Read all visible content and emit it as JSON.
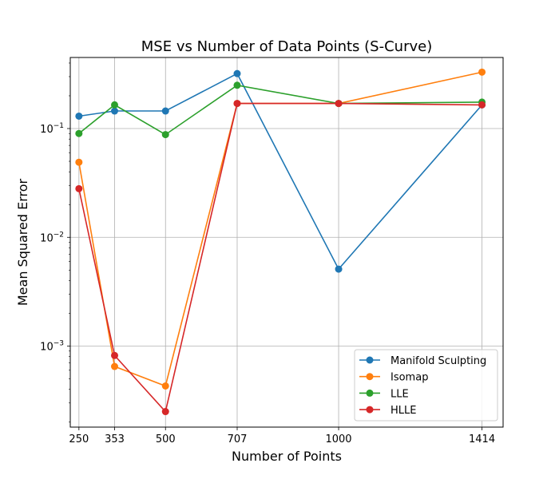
{
  "chart_data": {
    "type": "line",
    "title": "MSE vs Number of Data Points (S-Curve)",
    "xlabel": "Number of Points",
    "ylabel": "Mean Squared Error",
    "yscale": "log",
    "xlim": [
      225,
      1475
    ],
    "ylim": [
      0.00018,
      0.45
    ],
    "grid": true,
    "legend_position": "lower-right",
    "x": [
      250,
      353,
      500,
      707,
      1000,
      1414
    ],
    "xticks": [
      "250",
      "353",
      "500",
      "707",
      "1000",
      "1414"
    ],
    "yticks": [
      {
        "value": 0.001,
        "base": "10",
        "exp": "−3"
      },
      {
        "value": 0.01,
        "base": "10",
        "exp": "−2"
      },
      {
        "value": 0.1,
        "base": "10",
        "exp": "−1"
      }
    ],
    "series": [
      {
        "name": "Manifold Sculpting",
        "color": "#1f77b4",
        "values": [
          0.13,
          0.145,
          0.145,
          0.32,
          0.0051,
          0.165
        ]
      },
      {
        "name": "Isomap",
        "color": "#ff7f0e",
        "values": [
          0.049,
          0.00065,
          0.00043,
          0.17,
          0.17,
          0.33
        ]
      },
      {
        "name": "LLE",
        "color": "#2ca02c",
        "values": [
          0.09,
          0.165,
          0.088,
          0.25,
          0.17,
          0.175
        ]
      },
      {
        "name": "HLLE",
        "color": "#d62728",
        "values": [
          0.028,
          0.00082,
          0.00025,
          0.17,
          0.17,
          0.165
        ]
      }
    ]
  }
}
